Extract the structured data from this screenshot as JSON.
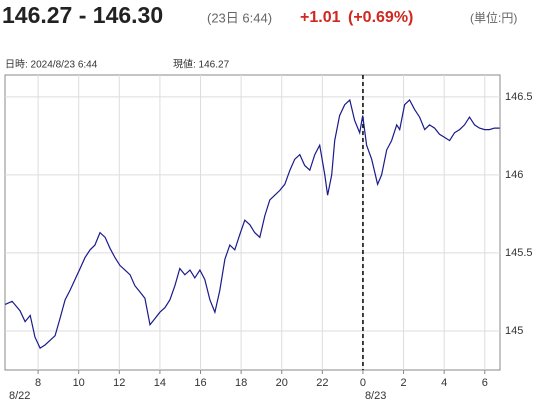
{
  "header": {
    "quote": "146.27 - 146.30",
    "time": "(23日 6:44)",
    "change": "+1.01",
    "change_pct": "(+0.69%)",
    "unit": "(単位:円)",
    "info_time": "日時: 2024/8/23  6:44",
    "info_price": "現値: 146.27"
  },
  "chart_data": {
    "type": "line",
    "color": "#1a1a8c",
    "grid": true,
    "x": [
      6.38,
      6.72,
      7.11,
      7.36,
      7.61,
      7.85,
      8.1,
      8.34,
      8.59,
      8.84,
      9.08,
      9.33,
      9.57,
      9.82,
      10.07,
      10.31,
      10.56,
      10.8,
      11.05,
      11.3,
      11.54,
      11.79,
      12.03,
      12.28,
      12.53,
      12.77,
      13.02,
      13.26,
      13.51,
      13.76,
      14.0,
      14.25,
      14.49,
      14.74,
      14.98,
      15.23,
      15.48,
      15.72,
      15.97,
      16.21,
      16.46,
      16.71,
      16.95,
      17.2,
      17.44,
      17.69,
      17.94,
      18.18,
      18.43,
      18.67,
      18.92,
      19.17,
      19.41,
      19.66,
      19.9,
      20.15,
      20.4,
      20.64,
      20.89,
      21.13,
      21.38,
      21.63,
      21.87,
      22.12,
      22.26,
      22.46,
      22.61,
      22.85,
      23.1,
      23.35,
      23.59,
      23.84,
      23.99,
      24.18,
      24.43,
      24.72,
      24.92,
      25.17,
      25.41,
      25.66,
      25.81,
      26.05,
      26.3,
      26.54,
      26.79,
      27.04,
      27.28,
      27.53,
      27.77,
      28.02,
      28.27,
      28.51,
      28.76,
      29.0,
      29.25,
      29.5,
      29.74,
      29.99,
      30.23,
      30.48,
      30.73
    ],
    "values": [
      145.17,
      145.19,
      145.13,
      145.06,
      145.1,
      144.96,
      144.89,
      144.91,
      144.94,
      144.97,
      145.08,
      145.2,
      145.26,
      145.33,
      145.4,
      145.47,
      145.52,
      145.55,
      145.63,
      145.6,
      145.53,
      145.47,
      145.42,
      145.39,
      145.36,
      145.29,
      145.25,
      145.21,
      145.04,
      145.08,
      145.12,
      145.15,
      145.2,
      145.29,
      145.4,
      145.36,
      145.39,
      145.34,
      145.39,
      145.33,
      145.2,
      145.12,
      145.26,
      145.46,
      145.55,
      145.52,
      145.62,
      145.71,
      145.68,
      145.63,
      145.6,
      145.74,
      145.84,
      145.87,
      145.9,
      145.94,
      146.03,
      146.1,
      146.13,
      146.06,
      146.03,
      146.13,
      146.19,
      146.0,
      145.87,
      146.0,
      146.22,
      146.38,
      146.45,
      146.48,
      146.35,
      146.27,
      146.38,
      146.19,
      146.1,
      145.94,
      146.0,
      146.16,
      146.22,
      146.32,
      146.29,
      146.45,
      146.48,
      146.42,
      146.37,
      146.29,
      146.32,
      146.3,
      146.26,
      146.24,
      146.22,
      146.27,
      146.29,
      146.32,
      146.37,
      146.32,
      146.3,
      146.29,
      146.29,
      146.3,
      146.3
    ],
    "xlim": [
      6.37,
      30.75
    ],
    "xticks": [
      8,
      10,
      12,
      14,
      16,
      18,
      20,
      22,
      {
        "value": 24,
        "label": "0"
      },
      {
        "value": 26,
        "label": "2"
      },
      {
        "value": 28,
        "label": "4"
      },
      {
        "value": 30,
        "label": "6"
      }
    ],
    "date_labels": [
      "8/22",
      "8/23"
    ],
    "ylim": [
      144.75,
      146.64
    ],
    "yticks": [
      145,
      145.5,
      146,
      146.5
    ]
  }
}
